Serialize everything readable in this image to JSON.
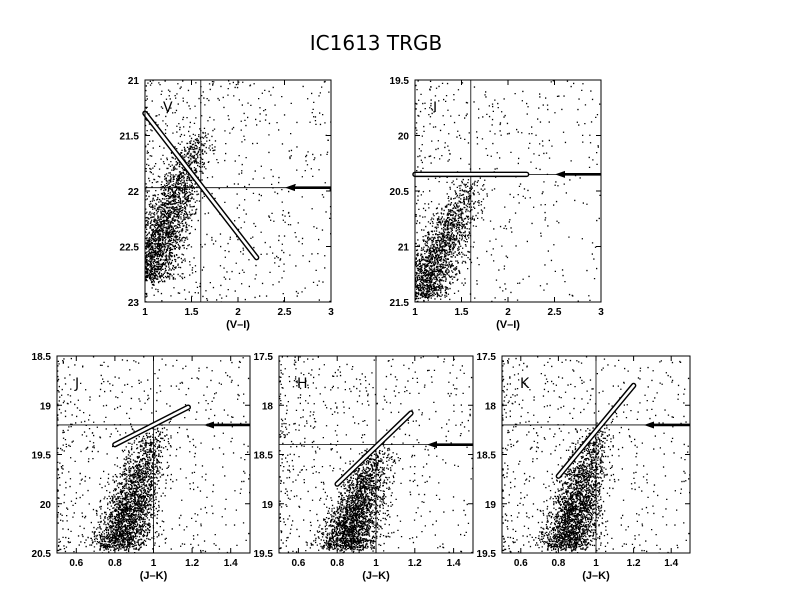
{
  "figure": {
    "title": "IC1613 TRGB"
  },
  "chart_data": [
    {
      "type": "scatter",
      "band_label": "V",
      "xlabel": "(V–I)",
      "xlim": [
        1,
        3
      ],
      "ylim": [
        21,
        23
      ],
      "y_inverted": true,
      "xticks": [
        1,
        1.5,
        2,
        2.5,
        3
      ],
      "yticks": [
        21,
        21.5,
        22,
        22.5,
        23
      ],
      "xtick_labels": [
        "1",
        "1.5",
        "2",
        "2.5",
        "3"
      ],
      "ytick_labels": [
        "21",
        "21.5",
        "22",
        "22.5",
        "23"
      ],
      "tip_color": 1.6,
      "tip_mag": 21.97,
      "rgb_line": [
        [
          1.0,
          21.3
        ],
        [
          2.2,
          22.6
        ]
      ],
      "rgb_locus": [
        [
          1.0,
          22.8
        ],
        [
          1.6,
          21.4
        ]
      ],
      "density_scale": 1.0
    },
    {
      "type": "scatter",
      "band_label": "I",
      "xlabel": "(V–I)",
      "xlim": [
        1,
        3
      ],
      "ylim": [
        19.5,
        21.5
      ],
      "y_inverted": true,
      "xticks": [
        1,
        1.5,
        2,
        2.5,
        3
      ],
      "yticks": [
        19.5,
        20,
        20.5,
        21,
        21.5
      ],
      "xtick_labels": [
        "1",
        "1.5",
        "2",
        "2.5",
        "3"
      ],
      "ytick_labels": [
        "19.5",
        "20",
        "20.5",
        "21",
        "21.5"
      ],
      "tip_color": 1.6,
      "tip_mag": 20.35,
      "rgb_line": [
        [
          1.0,
          20.35
        ],
        [
          2.2,
          20.35
        ]
      ],
      "rgb_locus": [
        [
          1.05,
          21.45
        ],
        [
          1.62,
          20.35
        ]
      ],
      "density_scale": 0.85
    },
    {
      "type": "scatter",
      "band_label": "J",
      "xlabel": "(J–K)",
      "xlim": [
        0.5,
        1.5
      ],
      "ylim": [
        18.5,
        20.5
      ],
      "y_inverted": true,
      "xticks": [
        0.6,
        0.8,
        1,
        1.2,
        1.4
      ],
      "yticks": [
        18.5,
        19,
        19.5,
        20,
        20.5
      ],
      "xtick_labels": [
        "0.6",
        "0.8",
        "1",
        "1.2",
        "1.4"
      ],
      "ytick_labels": [
        "18.5",
        "19",
        "19.5",
        "20",
        "20.5"
      ],
      "tip_color": 1.0,
      "tip_mag": 19.2,
      "rgb_line": [
        [
          0.8,
          19.4
        ],
        [
          1.18,
          19.02
        ]
      ],
      "rgb_locus": [
        [
          0.82,
          20.45
        ],
        [
          1.0,
          19.2
        ]
      ],
      "density_scale": 1.0
    },
    {
      "type": "scatter",
      "band_label": "H",
      "xlabel": "(J–K)",
      "xlim": [
        0.5,
        1.5
      ],
      "ylim": [
        17.5,
        19.5
      ],
      "y_inverted": true,
      "xticks": [
        0.6,
        0.8,
        1,
        1.2,
        1.4
      ],
      "yticks": [
        17.5,
        18,
        18.5,
        19,
        19.5
      ],
      "xtick_labels": [
        "0.6",
        "0.8",
        "1",
        "1.2",
        "1.4"
      ],
      "ytick_labels": [
        "17.5",
        "18",
        "18.5",
        "19",
        "19.5"
      ],
      "tip_color": 1.0,
      "tip_mag": 18.4,
      "rgb_line": [
        [
          0.8,
          18.8
        ],
        [
          1.18,
          18.08
        ]
      ],
      "rgb_locus": [
        [
          0.84,
          19.45
        ],
        [
          1.0,
          18.4
        ]
      ],
      "density_scale": 1.0
    },
    {
      "type": "scatter",
      "band_label": "K",
      "xlabel": "(J–K)",
      "xlim": [
        0.5,
        1.5
      ],
      "ylim": [
        17.5,
        19.5
      ],
      "y_inverted": true,
      "xticks": [
        0.6,
        0.8,
        1,
        1.2,
        1.4
      ],
      "yticks": [
        17.5,
        18,
        18.5,
        19,
        19.5
      ],
      "xtick_labels": [
        "0.6",
        "0.8",
        "1",
        "1.2",
        "1.4"
      ],
      "ytick_labels": [
        "17.5",
        "18",
        "18.5",
        "19",
        "19.5"
      ],
      "tip_color": 1.0,
      "tip_mag": 18.2,
      "rgb_line": [
        [
          0.8,
          18.72
        ],
        [
          1.2,
          17.8
        ]
      ],
      "rgb_locus": [
        [
          0.84,
          19.45
        ],
        [
          1.0,
          18.2
        ]
      ],
      "density_scale": 1.0
    }
  ]
}
